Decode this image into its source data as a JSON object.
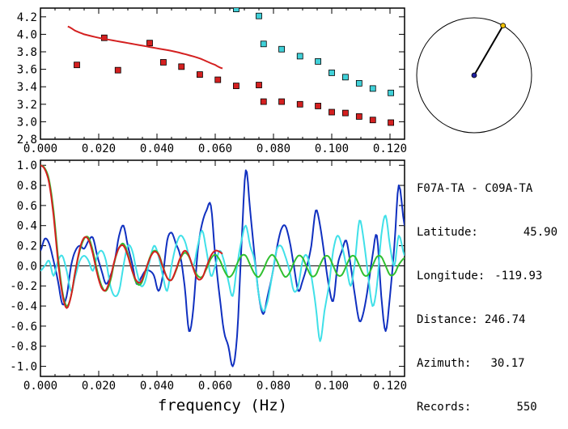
{
  "info": {
    "pair": "F07A-TA - C09A-TA",
    "latitude_label": "Latitude:",
    "latitude": "45.90",
    "longitude_label": "Longitude:",
    "longitude": "-119.93",
    "distance_label": "Distance:",
    "distance": "246.74",
    "azimuth_label": "Azimuth:",
    "azimuth": "30.17",
    "records_label": "Records:",
    "records": "550"
  },
  "azimuth_dial": {
    "azimuth_deg": 30.17,
    "needle_color": "#000000",
    "tip_color": "#f0c000",
    "center_color": "#2020a0"
  },
  "chart_data": [
    {
      "type": "scatter",
      "title": "",
      "xlabel": "",
      "ylabel": "",
      "xlim": [
        0.0,
        0.125
      ],
      "ylim": [
        2.8,
        4.3
      ],
      "x_ticks": [
        "0.000",
        "0.020",
        "0.040",
        "0.060",
        "0.080",
        "0.100",
        "0.120"
      ],
      "x_tick_values": [
        0.0,
        0.02,
        0.04,
        0.06,
        0.08,
        0.1,
        0.12
      ],
      "y_ticks": [
        "2.8",
        "3.0",
        "3.2",
        "3.4",
        "3.6",
        "3.8",
        "4.0",
        "4.2"
      ],
      "y_tick_values": [
        2.8,
        3.0,
        3.2,
        3.4,
        3.6,
        3.8,
        4.0,
        4.2
      ],
      "series": [
        {
          "kind": "points",
          "color": "#d42020",
          "x": [
            0.0125,
            0.0219,
            0.0266,
            0.0375,
            0.0422,
            0.0484,
            0.0547,
            0.0609,
            0.0672,
            0.075,
            0.0766,
            0.0828,
            0.0891,
            0.0953,
            0.1,
            0.1047,
            0.1094,
            0.1141,
            0.1203
          ],
          "y": [
            3.65,
            3.96,
            3.59,
            3.9,
            3.68,
            3.63,
            3.54,
            3.48,
            3.41,
            3.42,
            3.23,
            3.23,
            3.2,
            3.18,
            3.11,
            3.1,
            3.06,
            3.02,
            2.99
          ]
        },
        {
          "kind": "points",
          "color": "#40d0d8",
          "x": [
            0.0672,
            0.075,
            0.0766,
            0.0828,
            0.0891,
            0.0953,
            0.1,
            0.1047,
            0.1094,
            0.1141,
            0.1203
          ],
          "y": [
            4.29,
            4.21,
            3.89,
            3.83,
            3.75,
            3.69,
            3.56,
            3.51,
            3.44,
            3.38,
            3.33
          ]
        },
        {
          "kind": "curve",
          "color": "#d42020",
          "x": [
            0.0094,
            0.012,
            0.015,
            0.02,
            0.025,
            0.03,
            0.035,
            0.04,
            0.045,
            0.05,
            0.055,
            0.06,
            0.0625
          ],
          "y": [
            4.09,
            4.04,
            4.0,
            3.96,
            3.93,
            3.9,
            3.87,
            3.84,
            3.81,
            3.77,
            3.72,
            3.65,
            3.61
          ]
        }
      ]
    },
    {
      "type": "line",
      "title": "",
      "xlabel": "frequency (Hz)",
      "ylabel": "",
      "xlim": [
        0.0,
        0.125
      ],
      "ylim": [
        -1.1,
        1.05
      ],
      "x_ticks": [
        "0.000",
        "0.020",
        "0.040",
        "0.060",
        "0.080",
        "0.100",
        "0.120"
      ],
      "x_tick_values": [
        0.0,
        0.02,
        0.04,
        0.06,
        0.08,
        0.1,
        0.12
      ],
      "y_ticks": [
        "1.0",
        "0.8",
        "0.6",
        "0.4",
        "0.2",
        "0.0",
        "-0.2",
        "-0.4",
        "-0.6",
        "-0.8",
        "-1.0"
      ],
      "y_tick_values": [
        1.0,
        0.8,
        0.6,
        0.4,
        0.2,
        0.0,
        -0.2,
        -0.4,
        -0.6,
        -0.8,
        -1.0
      ],
      "zero_line": true,
      "series": [
        {
          "color": "#1030c0",
          "x": [
            0.0,
            0.0015,
            0.003,
            0.0045,
            0.006,
            0.0075,
            0.009,
            0.0105,
            0.012,
            0.0135,
            0.015,
            0.0165,
            0.018,
            0.0195,
            0.021,
            0.0225,
            0.024,
            0.0255,
            0.027,
            0.0285,
            0.03,
            0.0315,
            0.033,
            0.0345,
            0.036,
            0.0375,
            0.039,
            0.0405,
            0.042,
            0.0435,
            0.045,
            0.0465,
            0.048,
            0.0495,
            0.051,
            0.0525,
            0.054,
            0.0555,
            0.057,
            0.0585,
            0.06,
            0.0615,
            0.063,
            0.0645,
            0.066,
            0.0675,
            0.069,
            0.0705,
            0.072,
            0.0735,
            0.075,
            0.0765,
            0.078,
            0.0795,
            0.081,
            0.0825,
            0.084,
            0.0855,
            0.087,
            0.0885,
            0.09,
            0.0915,
            0.093,
            0.0945,
            0.096,
            0.0975,
            0.099,
            0.1005,
            0.102,
            0.1035,
            0.105,
            0.1065,
            0.108,
            0.1095,
            0.111,
            0.1125,
            0.114,
            0.1155,
            0.117,
            0.1185,
            0.12,
            0.1215,
            0.123,
            0.125
          ],
          "y": [
            0.15,
            0.27,
            0.22,
            0.05,
            -0.15,
            -0.38,
            -0.3,
            0.0,
            0.15,
            0.2,
            0.17,
            0.25,
            0.28,
            0.1,
            -0.05,
            -0.18,
            -0.1,
            0.05,
            0.3,
            0.4,
            0.2,
            0.02,
            -0.18,
            -0.12,
            -0.05,
            -0.05,
            -0.1,
            -0.25,
            -0.1,
            0.25,
            0.33,
            0.22,
            0.1,
            -0.2,
            -0.65,
            -0.42,
            0.15,
            0.42,
            0.55,
            0.6,
            0.1,
            -0.3,
            -0.65,
            -0.8,
            -1.0,
            -0.7,
            0.2,
            0.95,
            0.55,
            0.1,
            -0.3,
            -0.48,
            -0.3,
            -0.1,
            0.15,
            0.35,
            0.4,
            0.25,
            0.0,
            -0.25,
            -0.15,
            0.0,
            0.2,
            0.55,
            0.4,
            0.1,
            -0.2,
            -0.35,
            0.0,
            0.15,
            0.25,
            0.0,
            -0.3,
            -0.55,
            -0.45,
            -0.2,
            0.1,
            0.3,
            -0.3,
            -0.65,
            -0.3,
            0.2,
            0.8,
            0.4
          ]
        },
        {
          "color": "#40e0e8",
          "x": [
            0.0,
            0.0015,
            0.003,
            0.0045,
            0.006,
            0.0075,
            0.009,
            0.0105,
            0.012,
            0.0135,
            0.015,
            0.0165,
            0.018,
            0.0195,
            0.021,
            0.0225,
            0.024,
            0.0255,
            0.027,
            0.0285,
            0.03,
            0.0315,
            0.033,
            0.0345,
            0.036,
            0.0375,
            0.039,
            0.0405,
            0.042,
            0.0435,
            0.045,
            0.0465,
            0.048,
            0.0495,
            0.051,
            0.0525,
            0.054,
            0.0555,
            0.057,
            0.0585,
            0.06,
            0.0615,
            0.063,
            0.0645,
            0.066,
            0.0675,
            0.069,
            0.0705,
            0.072,
            0.0735,
            0.075,
            0.0765,
            0.078,
            0.0795,
            0.081,
            0.0825,
            0.084,
            0.0855,
            0.087,
            0.0885,
            0.09,
            0.0915,
            0.093,
            0.0945,
            0.096,
            0.0975,
            0.099,
            0.1005,
            0.102,
            0.1035,
            0.105,
            0.1065,
            0.108,
            0.1095,
            0.111,
            0.1125,
            0.114,
            0.1155,
            0.117,
            0.1185,
            0.12,
            0.1215,
            0.123,
            0.125
          ],
          "y": [
            -0.05,
            0.0,
            0.05,
            -0.1,
            0.05,
            0.1,
            -0.05,
            -0.25,
            -0.1,
            0.05,
            0.1,
            0.05,
            -0.05,
            0.1,
            0.15,
            0.05,
            -0.2,
            -0.3,
            -0.25,
            0.0,
            0.2,
            0.15,
            -0.05,
            -0.2,
            -0.15,
            0.05,
            0.2,
            0.1,
            -0.1,
            -0.25,
            0.0,
            0.2,
            0.3,
            0.25,
            0.1,
            0.0,
            0.2,
            0.35,
            0.15,
            -0.1,
            0.0,
            0.15,
            0.05,
            -0.15,
            -0.3,
            0.0,
            0.25,
            0.4,
            0.2,
            0.05,
            -0.3,
            -0.45,
            -0.35,
            -0.1,
            0.15,
            0.2,
            0.1,
            -0.05,
            -0.25,
            -0.2,
            0.05,
            0.1,
            -0.1,
            -0.4,
            -0.75,
            -0.45,
            -0.2,
            0.15,
            0.3,
            0.2,
            0.0,
            -0.2,
            0.05,
            0.45,
            0.25,
            -0.1,
            -0.4,
            -0.2,
            0.3,
            0.5,
            0.2,
            0.0,
            0.3,
            0.1
          ]
        },
        {
          "color": "#30c030",
          "x": [
            0.0,
            0.0015,
            0.003,
            0.0045,
            0.006,
            0.0075,
            0.009,
            0.0105,
            0.012,
            0.0135,
            0.015,
            0.0165,
            0.018,
            0.0195,
            0.021,
            0.0225,
            0.024,
            0.0255,
            0.027,
            0.0285,
            0.03,
            0.0315,
            0.033,
            0.0345,
            0.036,
            0.0375,
            0.039,
            0.0405,
            0.042,
            0.0435,
            0.045,
            0.0465,
            0.048,
            0.0495,
            0.051,
            0.0525,
            0.054,
            0.0555,
            0.057,
            0.0585,
            0.06,
            0.0615,
            0.063,
            0.0645,
            0.066,
            0.0675,
            0.069,
            0.0705,
            0.072,
            0.0735,
            0.075,
            0.0765,
            0.078,
            0.0795,
            0.081,
            0.0825,
            0.084,
            0.0855,
            0.087,
            0.0885,
            0.09,
            0.0915,
            0.093,
            0.0945,
            0.096,
            0.0975,
            0.099,
            0.1005,
            0.102,
            0.1035,
            0.105,
            0.1065,
            0.108,
            0.1095,
            0.111,
            0.1125,
            0.114,
            0.1155,
            0.117,
            0.1185,
            0.12,
            0.1215,
            0.123,
            0.125
          ],
          "y": [
            1.0,
            0.97,
            0.85,
            0.55,
            0.1,
            -0.25,
            -0.4,
            -0.3,
            -0.05,
            0.15,
            0.27,
            0.28,
            0.15,
            -0.05,
            -0.2,
            -0.25,
            -0.15,
            0.05,
            0.18,
            0.22,
            0.12,
            -0.05,
            -0.17,
            -0.18,
            -0.06,
            0.08,
            0.15,
            0.12,
            0.0,
            -0.12,
            -0.14,
            -0.05,
            0.07,
            0.13,
            0.09,
            -0.02,
            -0.1,
            -0.11,
            -0.03,
            0.07,
            0.11,
            0.06,
            -0.04,
            -0.11,
            -0.08,
            0.02,
            0.1,
            0.1,
            0.01,
            -0.08,
            -0.11,
            -0.04,
            0.06,
            0.11,
            0.06,
            -0.04,
            -0.11,
            -0.07,
            0.03,
            0.1,
            0.08,
            -0.02,
            -0.1,
            -0.09,
            0.01,
            0.09,
            0.09,
            0.0,
            -0.09,
            -0.09,
            0.0,
            0.09,
            0.09,
            0.0,
            -0.09,
            -0.09,
            0.0,
            0.09,
            0.09,
            0.0,
            -0.09,
            -0.08,
            0.01,
            0.08
          ]
        },
        {
          "color": "#d42020",
          "x": [
            0.0,
            0.0015,
            0.003,
            0.0045,
            0.006,
            0.0075,
            0.009,
            0.0105,
            0.012,
            0.0135,
            0.015,
            0.0165,
            0.018,
            0.0195,
            0.021,
            0.0225,
            0.024,
            0.0255,
            0.027,
            0.0285,
            0.03,
            0.0315,
            0.033,
            0.0345,
            0.036,
            0.0375,
            0.039,
            0.0405,
            0.042,
            0.0435,
            0.045,
            0.0465,
            0.048,
            0.0495,
            0.051,
            0.0525,
            0.054,
            0.0555,
            0.057,
            0.0585,
            0.06,
            0.0615,
            0.0625
          ],
          "y": [
            1.0,
            0.96,
            0.82,
            0.5,
            0.05,
            -0.28,
            -0.42,
            -0.3,
            -0.05,
            0.17,
            0.28,
            0.26,
            0.12,
            -0.08,
            -0.22,
            -0.24,
            -0.12,
            0.06,
            0.18,
            0.2,
            0.1,
            -0.05,
            -0.15,
            -0.16,
            -0.05,
            0.07,
            0.14,
            0.11,
            -0.01,
            -0.12,
            -0.14,
            -0.04,
            0.08,
            0.15,
            0.1,
            -0.03,
            -0.13,
            -0.12,
            -0.01,
            0.1,
            0.15,
            0.14,
            0.12
          ]
        }
      ]
    }
  ]
}
